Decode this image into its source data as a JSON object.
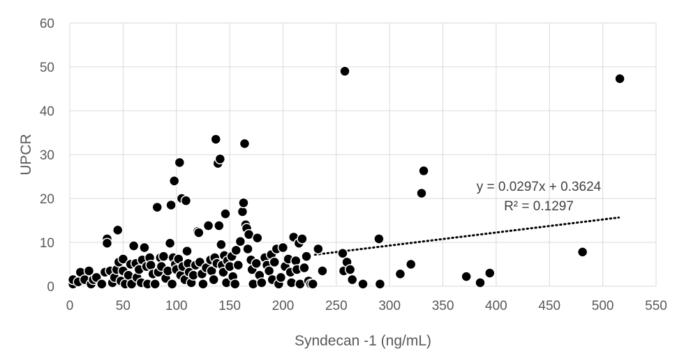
{
  "chart_data": {
    "type": "scatter",
    "title": "",
    "xlabel": "Syndecan -1 (ng/mL)",
    "ylabel": "UPCR",
    "xlim": [
      0,
      550
    ],
    "ylim": [
      0,
      60
    ],
    "xticks": [
      0,
      50,
      100,
      150,
      200,
      250,
      300,
      350,
      400,
      450,
      500,
      550
    ],
    "yticks": [
      0,
      10,
      20,
      30,
      40,
      50,
      60
    ],
    "xtick_labels": [
      "0",
      "50",
      "100",
      "150",
      "200",
      "250",
      "300",
      "350",
      "400",
      "450",
      "500",
      "550"
    ],
    "ytick_labels": [
      "0",
      "10",
      "20",
      "30",
      "40",
      "50",
      "60"
    ],
    "grid": "both",
    "legend": "none",
    "marker_color": "#000000",
    "trendline": {
      "type": "linear",
      "slope": 0.0297,
      "intercept": 0.3624,
      "x_range": [
        230,
        515
      ],
      "style": "dotted",
      "equation_label": "y = 0.0297x + 0.3624",
      "r2_label": "R² = 0.1297"
    },
    "points": [
      [
        3,
        0.5
      ],
      [
        3,
        1.5
      ],
      [
        8,
        1
      ],
      [
        10,
        3.2
      ],
      [
        14,
        1.5
      ],
      [
        18,
        3.5
      ],
      [
        20,
        0.5
      ],
      [
        22,
        1.5
      ],
      [
        25,
        2
      ],
      [
        30,
        0.5
      ],
      [
        33,
        3.2
      ],
      [
        35,
        10.8
      ],
      [
        35,
        9.8
      ],
      [
        38,
        3.5
      ],
      [
        40,
        0.8
      ],
      [
        42,
        2
      ],
      [
        44,
        3.8
      ],
      [
        45,
        12.8
      ],
      [
        46,
        5.5
      ],
      [
        48,
        1.2
      ],
      [
        50,
        6.2
      ],
      [
        50,
        3.5
      ],
      [
        52,
        0.5
      ],
      [
        55,
        2.5
      ],
      [
        57,
        5
      ],
      [
        58,
        0.5
      ],
      [
        60,
        9.2
      ],
      [
        62,
        5.2
      ],
      [
        63,
        2
      ],
      [
        65,
        3.8
      ],
      [
        67,
        0.8
      ],
      [
        68,
        6
      ],
      [
        70,
        8.8
      ],
      [
        72,
        4.5
      ],
      [
        73,
        0.5
      ],
      [
        75,
        6.5
      ],
      [
        76,
        4.8
      ],
      [
        78,
        2.8
      ],
      [
        80,
        0.5
      ],
      [
        82,
        18
      ],
      [
        83,
        3.2
      ],
      [
        85,
        6.5
      ],
      [
        86,
        4.5
      ],
      [
        88,
        6.8
      ],
      [
        90,
        1.8
      ],
      [
        92,
        3.5
      ],
      [
        94,
        9.8
      ],
      [
        95,
        18.5
      ],
      [
        96,
        0.5
      ],
      [
        97,
        6.5
      ],
      [
        98,
        24
      ],
      [
        99,
        5
      ],
      [
        100,
        3.8
      ],
      [
        102,
        6.2
      ],
      [
        103,
        28.2
      ],
      [
        104,
        2.5
      ],
      [
        105,
        20
      ],
      [
        106,
        4.5
      ],
      [
        108,
        1.5
      ],
      [
        109,
        19.5
      ],
      [
        110,
        8
      ],
      [
        111,
        5.2
      ],
      [
        112,
        3.2
      ],
      [
        114,
        0.8
      ],
      [
        116,
        2.5
      ],
      [
        118,
        4.8
      ],
      [
        120,
        12.5
      ],
      [
        121,
        12.2
      ],
      [
        122,
        5.5
      ],
      [
        124,
        2.8
      ],
      [
        125,
        0.5
      ],
      [
        128,
        4.2
      ],
      [
        130,
        13.8
      ],
      [
        132,
        6
      ],
      [
        133,
        3.5
      ],
      [
        135,
        1.5
      ],
      [
        136,
        6.5
      ],
      [
        137,
        33.5
      ],
      [
        138,
        5.2
      ],
      [
        139,
        28
      ],
      [
        140,
        13.8
      ],
      [
        141,
        29
      ],
      [
        142,
        9.5
      ],
      [
        143,
        4.8
      ],
      [
        144,
        3.2
      ],
      [
        145,
        7
      ],
      [
        146,
        16.5
      ],
      [
        147,
        0.8
      ],
      [
        148,
        5.8
      ],
      [
        150,
        4.5
      ],
      [
        152,
        6.8
      ],
      [
        153,
        2.2
      ],
      [
        155,
        0.5
      ],
      [
        156,
        8.2
      ],
      [
        158,
        4.8
      ],
      [
        160,
        10.2
      ],
      [
        162,
        17
      ],
      [
        163,
        19
      ],
      [
        164,
        32.5
      ],
      [
        165,
        14
      ],
      [
        166,
        13.2
      ],
      [
        167,
        8.5
      ],
      [
        168,
        11.8
      ],
      [
        170,
        6
      ],
      [
        171,
        3.8
      ],
      [
        172,
        0.5
      ],
      [
        175,
        5.2
      ],
      [
        176,
        11
      ],
      [
        178,
        2.5
      ],
      [
        180,
        0.8
      ],
      [
        183,
        6.5
      ],
      [
        185,
        4.8
      ],
      [
        187,
        3.5
      ],
      [
        189,
        7.2
      ],
      [
        190,
        1.5
      ],
      [
        192,
        5.5
      ],
      [
        194,
        8.5
      ],
      [
        196,
        0.5
      ],
      [
        198,
        2
      ],
      [
        200,
        8.8
      ],
      [
        202,
        4.5
      ],
      [
        205,
        6.2
      ],
      [
        207,
        3.2
      ],
      [
        208,
        0.8
      ],
      [
        210,
        11.2
      ],
      [
        212,
        5.8
      ],
      [
        213,
        3.8
      ],
      [
        215,
        9.8
      ],
      [
        216,
        0.5
      ],
      [
        218,
        10.8
      ],
      [
        220,
        4.2
      ],
      [
        222,
        6.8
      ],
      [
        224,
        1.2
      ],
      [
        226,
        0.5
      ],
      [
        228,
        0.5
      ],
      [
        233,
        8.5
      ],
      [
        237,
        3.5
      ],
      [
        256,
        7.5
      ],
      [
        257,
        3.5
      ],
      [
        258,
        49
      ],
      [
        260,
        5.5
      ],
      [
        263,
        3.8
      ],
      [
        265,
        1.5
      ],
      [
        275,
        0.5
      ],
      [
        290,
        10.8
      ],
      [
        291,
        0.5
      ],
      [
        310,
        2.8
      ],
      [
        320,
        5
      ],
      [
        330,
        21.2
      ],
      [
        332,
        26.3
      ],
      [
        372,
        2.2
      ],
      [
        385,
        0.8
      ],
      [
        394,
        3
      ],
      [
        481,
        7.8
      ],
      [
        516,
        47.3
      ]
    ]
  }
}
